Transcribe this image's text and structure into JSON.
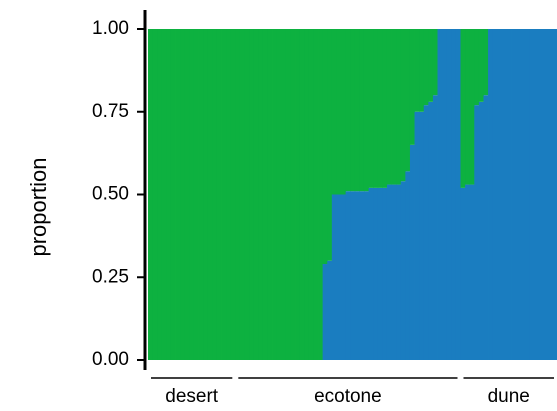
{
  "chart_data": {
    "type": "stacked_bar",
    "ylabel": "proportion",
    "ylim": [
      0,
      1
    ],
    "yticks": [
      {
        "value": 0,
        "label": "0.00"
      },
      {
        "value": 0.25,
        "label": "0.25"
      },
      {
        "value": 0.5,
        "label": "0.50"
      },
      {
        "value": 0.75,
        "label": "0.75"
      },
      {
        "value": 1,
        "label": "1.00"
      }
    ],
    "groups": [
      {
        "label": "desert",
        "size": 19
      },
      {
        "label": "ecotone",
        "size": 49
      },
      {
        "label": "dune",
        "size": 21
      }
    ],
    "series": [
      {
        "color": "#1a7dc0",
        "values": [
          0,
          0,
          0,
          0,
          0,
          0,
          0,
          0,
          0,
          0,
          0,
          0,
          0,
          0,
          0,
          0,
          0,
          0,
          0,
          0,
          0,
          0,
          0,
          0,
          0,
          0,
          0,
          0,
          0,
          0,
          0,
          0,
          0,
          0,
          0,
          0,
          0,
          0,
          0.29,
          0.3,
          0.5,
          0.5,
          0.5,
          0.51,
          0.51,
          0.51,
          0.51,
          0.51,
          0.52,
          0.52,
          0.52,
          0.52,
          0.53,
          0.53,
          0.53,
          0.54,
          0.57,
          0.65,
          0.75,
          0.75,
          0.77,
          0.78,
          0.8,
          1,
          1,
          1,
          1,
          1,
          0.52,
          0.53,
          0.53,
          0.77,
          0.78,
          0.8,
          1,
          1,
          1,
          1,
          1,
          1,
          1,
          1,
          1,
          1,
          1,
          1,
          1,
          1,
          1
        ]
      },
      {
        "color": "#0db140",
        "values": [
          1,
          1,
          1,
          1,
          1,
          1,
          1,
          1,
          1,
          1,
          1,
          1,
          1,
          1,
          1,
          1,
          1,
          1,
          1,
          1,
          1,
          1,
          1,
          1,
          1,
          1,
          1,
          1,
          1,
          1,
          1,
          1,
          1,
          1,
          1,
          1,
          1,
          1,
          0.71,
          0.7,
          0.5,
          0.5,
          0.5,
          0.49,
          0.49,
          0.49,
          0.49,
          0.49,
          0.48,
          0.48,
          0.48,
          0.48,
          0.47,
          0.47,
          0.47,
          0.46,
          0.43,
          0.35,
          0.25,
          0.25,
          0.23,
          0.22,
          0.2,
          0,
          0,
          0,
          0,
          0,
          0.48,
          0.47,
          0.47,
          0.23,
          0.22,
          0.2,
          0,
          0,
          0,
          0,
          0,
          0,
          0,
          0,
          0,
          0,
          0,
          0,
          0,
          0,
          0
        ]
      }
    ]
  }
}
